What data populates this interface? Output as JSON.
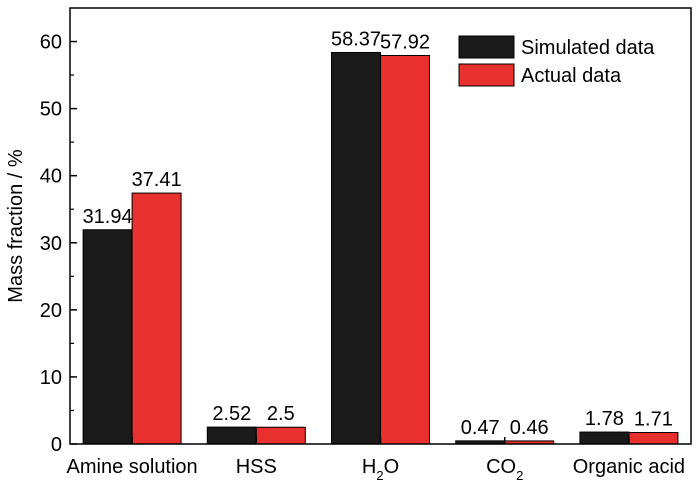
{
  "chart_data": {
    "type": "bar",
    "title": "",
    "xlabel": "",
    "ylabel": "Mass fraction / %",
    "ylim": [
      0,
      65
    ],
    "yticks": [
      "0",
      "10",
      "20",
      "30",
      "40",
      "50",
      "60"
    ],
    "ytick_values": [
      0,
      10,
      20,
      30,
      40,
      50,
      60
    ],
    "categories": [
      {
        "main": "Amine solution",
        "sub": ""
      },
      {
        "main": "HSS",
        "sub": ""
      },
      {
        "main": "H",
        "sub": "2",
        "tail": "O"
      },
      {
        "main": "CO",
        "sub": "2",
        "tail": ""
      },
      {
        "main": "Organic acid",
        "sub": ""
      }
    ],
    "series": [
      {
        "name": "Simulated data",
        "color": "#1a1a1a",
        "values": [
          31.94,
          2.52,
          58.37,
          0.47,
          1.78
        ],
        "labels": [
          "31.94",
          "2.52",
          "58.37",
          "0.47",
          "1.78"
        ]
      },
      {
        "name": "Actual data",
        "color": "#e8302e",
        "values": [
          37.41,
          2.5,
          57.92,
          0.46,
          1.71
        ],
        "labels": [
          "37.41",
          "2.5",
          "57.92",
          "0.46",
          "1.71"
        ]
      }
    ],
    "legend_position": "top-right",
    "grid": false
  }
}
